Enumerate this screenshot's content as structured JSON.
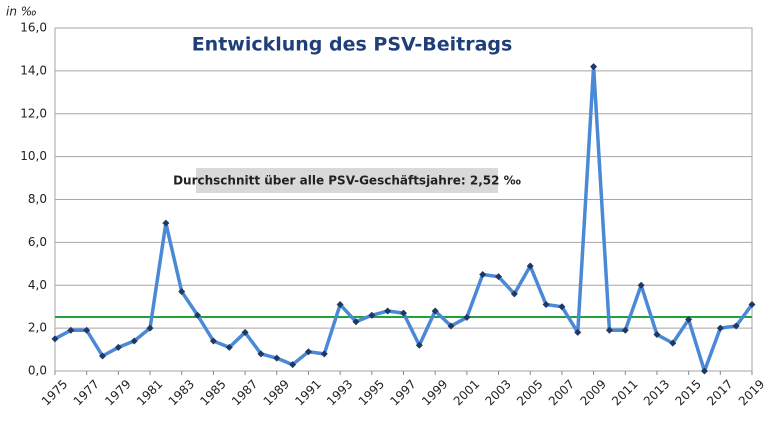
{
  "chart_data": {
    "type": "line",
    "title": "Entwicklung des PSV-Beitrags",
    "y_label": "in ‰",
    "annotation": "Durchschnitt über alle PSV-Geschäftsjahre: 2,52 ‰",
    "average": 2.52,
    "average_color": "#22a33a",
    "x": [
      1975,
      1976,
      1977,
      1978,
      1979,
      1980,
      1981,
      1982,
      1983,
      1984,
      1985,
      1986,
      1987,
      1988,
      1989,
      1990,
      1991,
      1992,
      1993,
      1994,
      1995,
      1996,
      1997,
      1998,
      1999,
      2000,
      2001,
      2002,
      2003,
      2004,
      2005,
      2006,
      2007,
      2008,
      2009,
      2010,
      2011,
      2012,
      2013,
      2014,
      2015,
      2016,
      2017,
      2018,
      2019
    ],
    "series": [
      {
        "color": "#4a89d6",
        "marker_color": "#1f3864",
        "values": [
          1.5,
          1.9,
          1.9,
          0.7,
          1.1,
          1.4,
          2.0,
          6.9,
          3.7,
          2.6,
          1.4,
          1.1,
          1.8,
          0.8,
          0.6,
          0.3,
          0.9,
          0.8,
          3.1,
          2.3,
          2.6,
          2.8,
          2.7,
          1.2,
          2.8,
          2.1,
          2.5,
          4.5,
          4.4,
          3.6,
          4.9,
          3.1,
          3.0,
          1.8,
          14.2,
          1.9,
          1.9,
          4.0,
          1.7,
          1.3,
          2.4,
          0.0,
          2.0,
          2.1,
          3.1
        ]
      }
    ],
    "xlim": [
      1975,
      2019
    ],
    "xticks": [
      1975,
      1977,
      1979,
      1981,
      1983,
      1985,
      1987,
      1989,
      1991,
      1993,
      1995,
      1997,
      1999,
      2001,
      2003,
      2005,
      2007,
      2009,
      2011,
      2013,
      2015,
      2017,
      2019
    ],
    "ylim": [
      0,
      16
    ],
    "yticks": [
      {
        "value": 0,
        "label": "0,0"
      },
      {
        "value": 2,
        "label": "2,0"
      },
      {
        "value": 4,
        "label": "4,0"
      },
      {
        "value": 6,
        "label": "6,0"
      },
      {
        "value": 8,
        "label": "8,0"
      },
      {
        "value": 10,
        "label": "10,0"
      },
      {
        "value": 12,
        "label": "12,0"
      },
      {
        "value": 14,
        "label": "14,0"
      },
      {
        "value": 16,
        "label": "16,0"
      }
    ],
    "grid": true
  }
}
